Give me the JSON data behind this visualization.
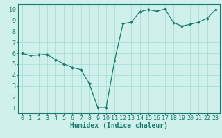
{
  "x_vals": [
    0,
    1,
    2,
    3,
    4,
    5,
    6,
    7,
    8,
    9,
    10,
    11,
    12,
    13,
    14,
    15,
    16,
    17,
    18,
    19,
    20,
    21,
    22,
    23
  ],
  "y_vals": [
    6.0,
    5.8,
    5.85,
    5.9,
    5.4,
    5.0,
    4.7,
    4.5,
    3.2,
    1.0,
    1.0,
    5.3,
    8.7,
    8.85,
    9.8,
    10.0,
    9.85,
    10.05,
    8.8,
    8.5,
    8.65,
    8.85,
    9.2,
    10.0
  ],
  "line_color": "#1a7a6e",
  "bg_color": "#cff0eb",
  "grid_color": "#aaddd7",
  "axis_color": "#1a7a6e",
  "xlabel": "Humidex (Indice chaleur)",
  "xlim": [
    -0.5,
    23.5
  ],
  "ylim": [
    0.5,
    10.5
  ],
  "yticks": [
    1,
    2,
    3,
    4,
    5,
    6,
    7,
    8,
    9,
    10
  ],
  "xticks": [
    0,
    1,
    2,
    3,
    4,
    5,
    6,
    7,
    8,
    9,
    10,
    11,
    12,
    13,
    14,
    15,
    16,
    17,
    18,
    19,
    20,
    21,
    22,
    23
  ],
  "xlabel_fontsize": 7,
  "tick_fontsize": 6
}
